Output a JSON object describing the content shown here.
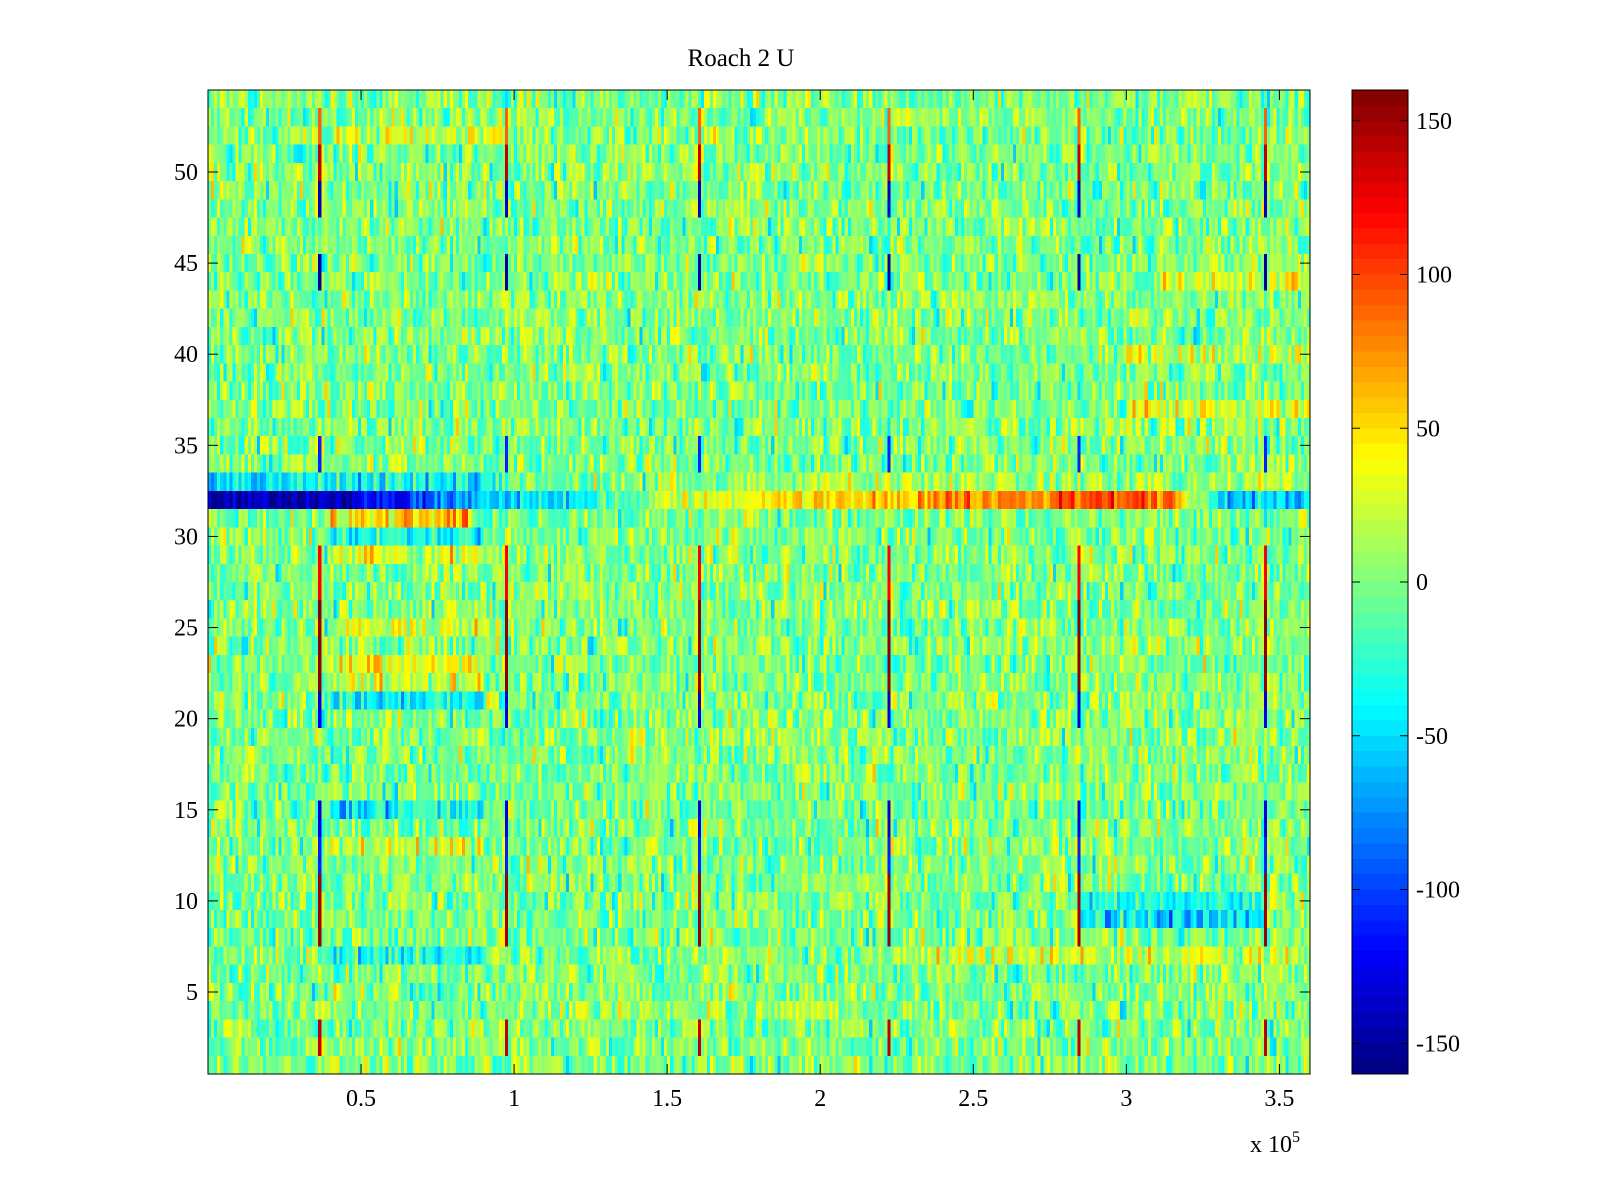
{
  "chart_data": {
    "type": "heatmap",
    "title": "Roach 2 U",
    "xlabel": "",
    "ylabel": "",
    "x_multiplier_label": "x 10",
    "x_multiplier_exponent": "5",
    "xlim": [
      0,
      3.6
    ],
    "ylim": [
      0.5,
      54.5
    ],
    "x_ticks": [
      0.5,
      1,
      1.5,
      2,
      2.5,
      3,
      3.5
    ],
    "x_tick_labels": [
      "0.5",
      "1",
      "1.5",
      "2",
      "2.5",
      "3",
      "3.5"
    ],
    "y_ticks": [
      5,
      10,
      15,
      20,
      25,
      30,
      35,
      40,
      45,
      50
    ],
    "y_tick_labels": [
      "5",
      "10",
      "15",
      "20",
      "25",
      "30",
      "35",
      "40",
      "45",
      "50"
    ],
    "rows": 54,
    "columns": 360,
    "noise_amplitude": 22,
    "colormap": "jet",
    "colorbar": {
      "range": [
        -160,
        160
      ],
      "ticks": [
        150,
        100,
        50,
        0,
        -50,
        -100,
        -150
      ],
      "tick_labels": [
        "150",
        "100",
        "50",
        "0",
        "-50",
        "-100",
        "-150"
      ],
      "location": "right"
    },
    "periodic_spike_columns_x1e5": [
      0.36,
      0.98,
      1.6,
      2.22,
      2.84,
      3.46
    ],
    "spike_row_segments": [
      {
        "row_from": 2,
        "row_to": 3,
        "value": 140
      },
      {
        "row_from": 8,
        "row_to": 11,
        "value": 150
      },
      {
        "row_from": 12,
        "row_to": 13,
        "value": -110
      },
      {
        "row_from": 14,
        "row_to": 15,
        "value": -130
      },
      {
        "row_from": 20,
        "row_to": 21,
        "value": -130
      },
      {
        "row_from": 22,
        "row_to": 26,
        "value": 155
      },
      {
        "row_from": 27,
        "row_to": 29,
        "value": 120
      },
      {
        "row_from": 34,
        "row_to": 35,
        "value": -110
      },
      {
        "row_from": 44,
        "row_to": 45,
        "value": -150
      },
      {
        "row_from": 48,
        "row_to": 49,
        "value": -140
      },
      {
        "row_from": 50,
        "row_to": 51,
        "value": 140
      },
      {
        "row_from": 52,
        "row_to": 53,
        "value": 90
      }
    ],
    "row_32_profile": {
      "row": 32,
      "x_x1e5": [
        0,
        0.45,
        0.9,
        1.25,
        1.6,
        2.0,
        2.4,
        2.8,
        3.15,
        3.3,
        3.6
      ],
      "values": [
        -150,
        -140,
        -65,
        -35,
        30,
        50,
        70,
        90,
        85,
        -50,
        -60
      ]
    },
    "row_33_profile": {
      "row": 33,
      "x_x1e5": [
        0,
        0.9,
        1.0,
        2.0,
        3.6
      ],
      "values": [
        -45,
        -35,
        -5,
        15,
        10
      ]
    },
    "row_bias_segments": [
      {
        "row": 31,
        "x_from": 0.4,
        "x_to": 0.85,
        "value": 55
      },
      {
        "row": 30,
        "x_from": 0.4,
        "x_to": 0.9,
        "value": -35
      },
      {
        "row": 29,
        "x_from": 0.4,
        "x_to": 0.9,
        "value": 30
      },
      {
        "row": 25,
        "x_from": 0.4,
        "x_to": 0.9,
        "value": 25
      },
      {
        "row": 23,
        "x_from": 0.4,
        "x_to": 0.9,
        "value": 35
      },
      {
        "row": 22,
        "x_from": 0.4,
        "x_to": 0.9,
        "value": 25
      },
      {
        "row": 21,
        "x_from": 0.4,
        "x_to": 0.9,
        "value": -35
      },
      {
        "row": 15,
        "x_from": 0.4,
        "x_to": 0.9,
        "value": -40
      },
      {
        "row": 13,
        "x_from": 0.4,
        "x_to": 0.9,
        "value": 25
      },
      {
        "row": 10,
        "x_from": 2.85,
        "x_to": 3.45,
        "value": -30
      },
      {
        "row": 9,
        "x_from": 2.85,
        "x_to": 3.45,
        "value": -45
      },
      {
        "row": 7,
        "x_from": 0.4,
        "x_to": 0.9,
        "value": -35
      },
      {
        "row": 7,
        "x_from": 2.2,
        "x_to": 3.6,
        "value": 25
      },
      {
        "row": 40,
        "x_from": 3.0,
        "x_to": 3.6,
        "value": 25
      },
      {
        "row": 37,
        "x_from": 3.0,
        "x_to": 3.6,
        "value": 30
      },
      {
        "row": 44,
        "x_from": 3.1,
        "x_to": 3.6,
        "value": 25
      },
      {
        "row": 52,
        "x_from": 0.4,
        "x_to": 1.0,
        "value": 25
      }
    ]
  }
}
